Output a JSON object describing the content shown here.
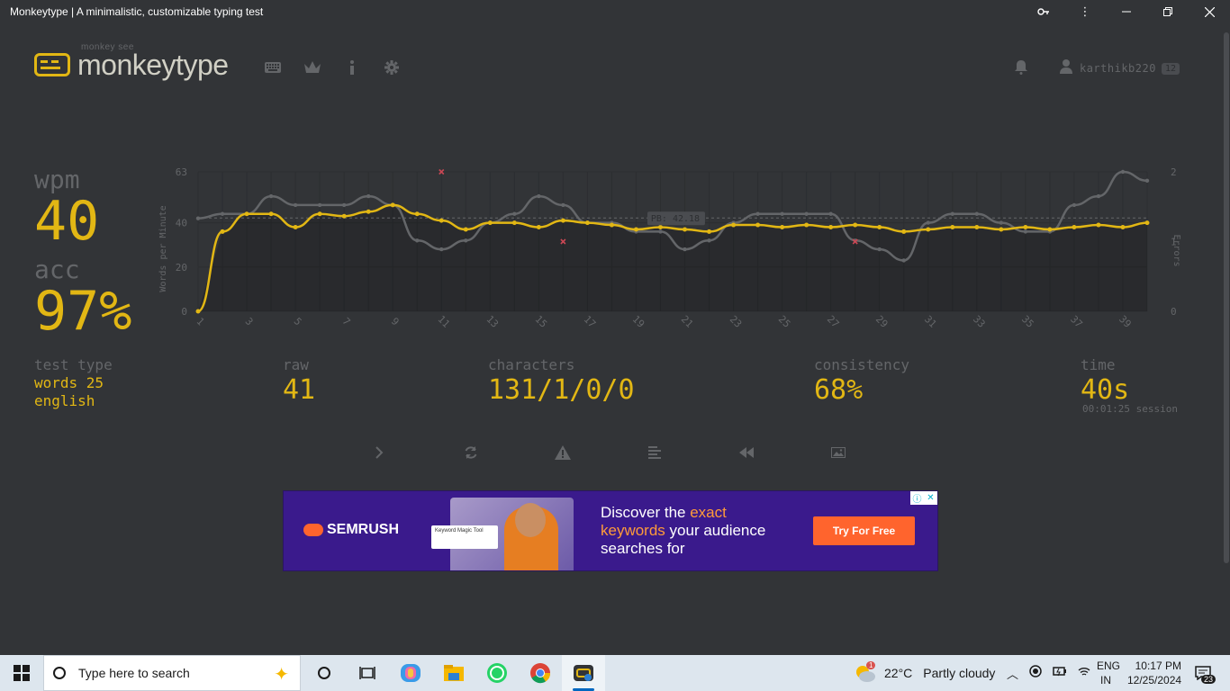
{
  "window": {
    "title": "Monkeytype | A minimalistic, customizable typing test",
    "controls": [
      "key-icon",
      "more-icon",
      "minimize-icon",
      "restore-icon",
      "close-icon"
    ]
  },
  "header": {
    "logo_sub": "monkey see",
    "logo_main": "monkeytype",
    "nav_icons": [
      "keyboard-icon",
      "crown-icon",
      "info-icon",
      "gear-icon"
    ],
    "username": "karthikb220",
    "level": "12"
  },
  "results": {
    "wpm_label": "wpm",
    "wpm_value": "40",
    "acc_label": "acc",
    "acc_value": "97%",
    "test_type_label": "test type",
    "test_type_mode": "words 25",
    "test_type_language": "english",
    "raw_label": "raw",
    "raw_value": "41",
    "characters_label": "characters",
    "characters_value": "131/1/0/0",
    "consistency_label": "consistency",
    "consistency_value": "68%",
    "time_label": "time",
    "time_value": "40s",
    "session_value": "00:01:25 session"
  },
  "actions": [
    "next-test-icon",
    "restart-icon",
    "report-icon",
    "words-history-icon",
    "replay-icon",
    "screenshot-icon"
  ],
  "chart_data": {
    "type": "line",
    "ylabel": "Words per Minute",
    "y2label": "Errors",
    "ylim": [
      0,
      63
    ],
    "y2lim": [
      0,
      2
    ],
    "yticks": [
      "63",
      "40",
      "20",
      "0"
    ],
    "y2ticks": [
      "2",
      "1",
      "0"
    ],
    "x": [
      1,
      2,
      3,
      4,
      5,
      6,
      7,
      8,
      9,
      10,
      11,
      12,
      13,
      14,
      15,
      16,
      17,
      18,
      19,
      20,
      21,
      22,
      23,
      24,
      25,
      26,
      27,
      28,
      29,
      30,
      31,
      32,
      33,
      34,
      35,
      36,
      37,
      38,
      39,
      40
    ],
    "xticks": [
      "1",
      "3",
      "5",
      "7",
      "9",
      "11",
      "13",
      "15",
      "17",
      "19",
      "21",
      "23",
      "25",
      "27",
      "29",
      "31",
      "33",
      "35",
      "37",
      "39"
    ],
    "annotation": "PB: 42.18",
    "pb": 42.18,
    "grid": true,
    "series": [
      {
        "key": "wpm",
        "color": "#e2b714",
        "values": [
          0,
          36,
          44,
          44,
          38,
          44,
          43,
          45,
          48,
          44,
          41,
          37,
          40,
          40,
          38,
          41,
          40,
          39,
          37,
          38,
          37,
          36,
          39,
          39,
          38,
          39,
          38,
          39,
          38,
          36,
          37,
          38,
          38,
          37,
          38,
          37,
          38,
          39,
          38,
          40
        ]
      },
      {
        "key": "raw",
        "color": "#646669",
        "values": [
          42,
          44,
          44,
          52,
          48,
          48,
          48,
          52,
          48,
          32,
          28,
          32,
          40,
          44,
          52,
          48,
          40,
          40,
          36,
          36,
          28,
          32,
          40,
          44,
          44,
          44,
          44,
          32,
          28,
          23,
          40,
          44,
          44,
          40,
          36,
          36,
          48,
          52,
          63,
          59
        ]
      },
      {
        "key": "errors",
        "color": "#ca4754",
        "points": [
          [
            11,
            2
          ],
          [
            16,
            1
          ],
          [
            28,
            1
          ]
        ]
      }
    ]
  },
  "ad": {
    "brand": "SEMRUSH",
    "card_title": "Keyword Magic Tool",
    "headline_1": "Discover the",
    "headline_1_hl": "exact",
    "headline_2_hl": "keywords",
    "headline_2": "your audience",
    "headline_3": "searches for",
    "cta": "Try For Free"
  },
  "taskbar": {
    "search_placeholder": "Type here to search",
    "weather_temp": "22°C",
    "weather_desc": "Partly cloudy",
    "weather_alert": "1",
    "lang_1": "ENG",
    "lang_2": "IN",
    "time": "10:17 PM",
    "date": "12/25/2024",
    "notif_count": "23"
  }
}
